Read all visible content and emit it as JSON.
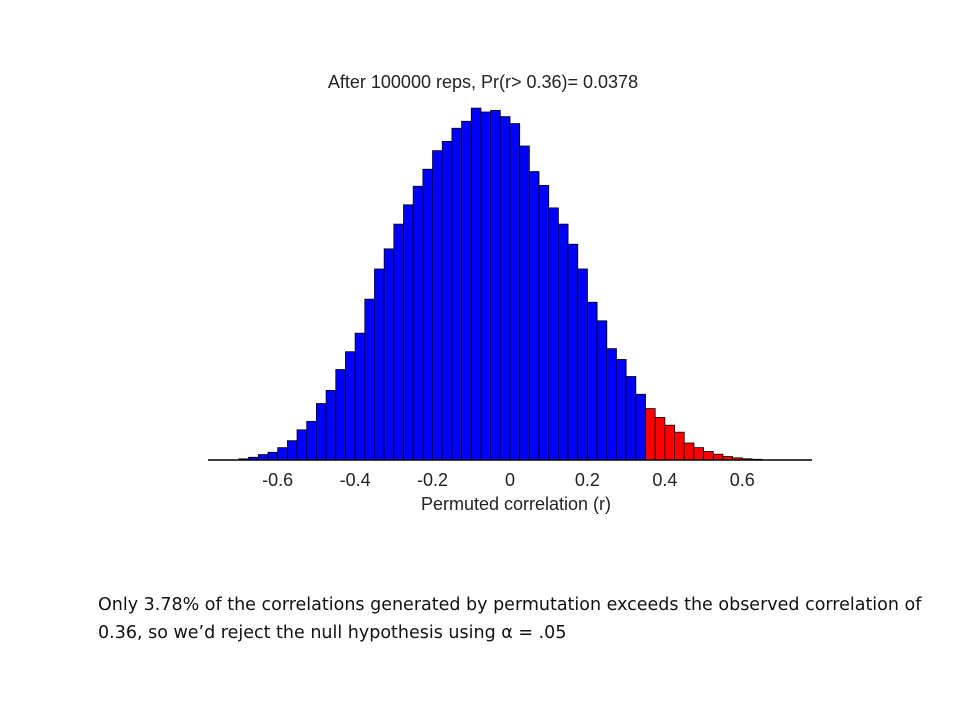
{
  "chart_data": {
    "type": "bar",
    "title": "After 100000 reps, Pr(r> 0.36)= 0.0378",
    "xlabel": "Permuted correlation (r)",
    "ylabel": "",
    "xlim": [
      -0.78,
      0.78
    ],
    "ylim": [
      0,
      4500
    ],
    "bin_width": 0.025,
    "x_ticks": [
      -0.6,
      -0.4,
      -0.2,
      0,
      0.2,
      0.4,
      0.6
    ],
    "x_tick_labels": [
      "-0.6",
      "-0.4",
      "-0.2",
      "0",
      "0.2",
      "0.4",
      "0.6"
    ],
    "threshold": 0.36,
    "grid": false,
    "legend": "none",
    "colors": {
      "below_threshold": "#0000ff",
      "above_threshold": "#ff0000",
      "edge": "#000000"
    },
    "bin_centers": [
      -0.7375,
      -0.7125,
      -0.6875,
      -0.6625,
      -0.6375,
      -0.6125,
      -0.5875,
      -0.5625,
      -0.5375,
      -0.5125,
      -0.4875,
      -0.4625,
      -0.4375,
      -0.4125,
      -0.3875,
      -0.3625,
      -0.3375,
      -0.3125,
      -0.2875,
      -0.2625,
      -0.2375,
      -0.2125,
      -0.1875,
      -0.1625,
      -0.1375,
      -0.1125,
      -0.0875,
      -0.0625,
      -0.0375,
      -0.0125,
      0.0125,
      0.0375,
      0.0625,
      0.0875,
      0.1125,
      0.1375,
      0.1625,
      0.1875,
      0.2125,
      0.2375,
      0.2625,
      0.2875,
      0.3125,
      0.3375,
      0.3625,
      0.3875,
      0.4125,
      0.4375,
      0.4625,
      0.4875,
      0.5125,
      0.5375,
      0.5625,
      0.5875,
      0.6125,
      0.6375,
      0.6625,
      0.6875,
      0.7125,
      0.7375
    ],
    "values": [
      2,
      6,
      15,
      35,
      70,
      100,
      160,
      250,
      390,
      500,
      730,
      900,
      1170,
      1400,
      1640,
      2080,
      2470,
      2730,
      3050,
      3300,
      3540,
      3760,
      4000,
      4120,
      4290,
      4380,
      4550,
      4500,
      4520,
      4440,
      4350,
      4060,
      3730,
      3550,
      3260,
      3050,
      2790,
      2470,
      2040,
      1800,
      1440,
      1300,
      1080,
      850,
      665,
      550,
      450,
      360,
      220,
      160,
      110,
      75,
      45,
      28,
      16,
      9,
      5,
      2,
      1,
      0
    ]
  },
  "caption": {
    "before_alpha": "Only 3.78% of the correlations generated by permutation exceeds the observed correlation of 0.36, so we’d reject the null hypothesis using ",
    "alpha_symbol": "α",
    "after_alpha": " = .05"
  }
}
